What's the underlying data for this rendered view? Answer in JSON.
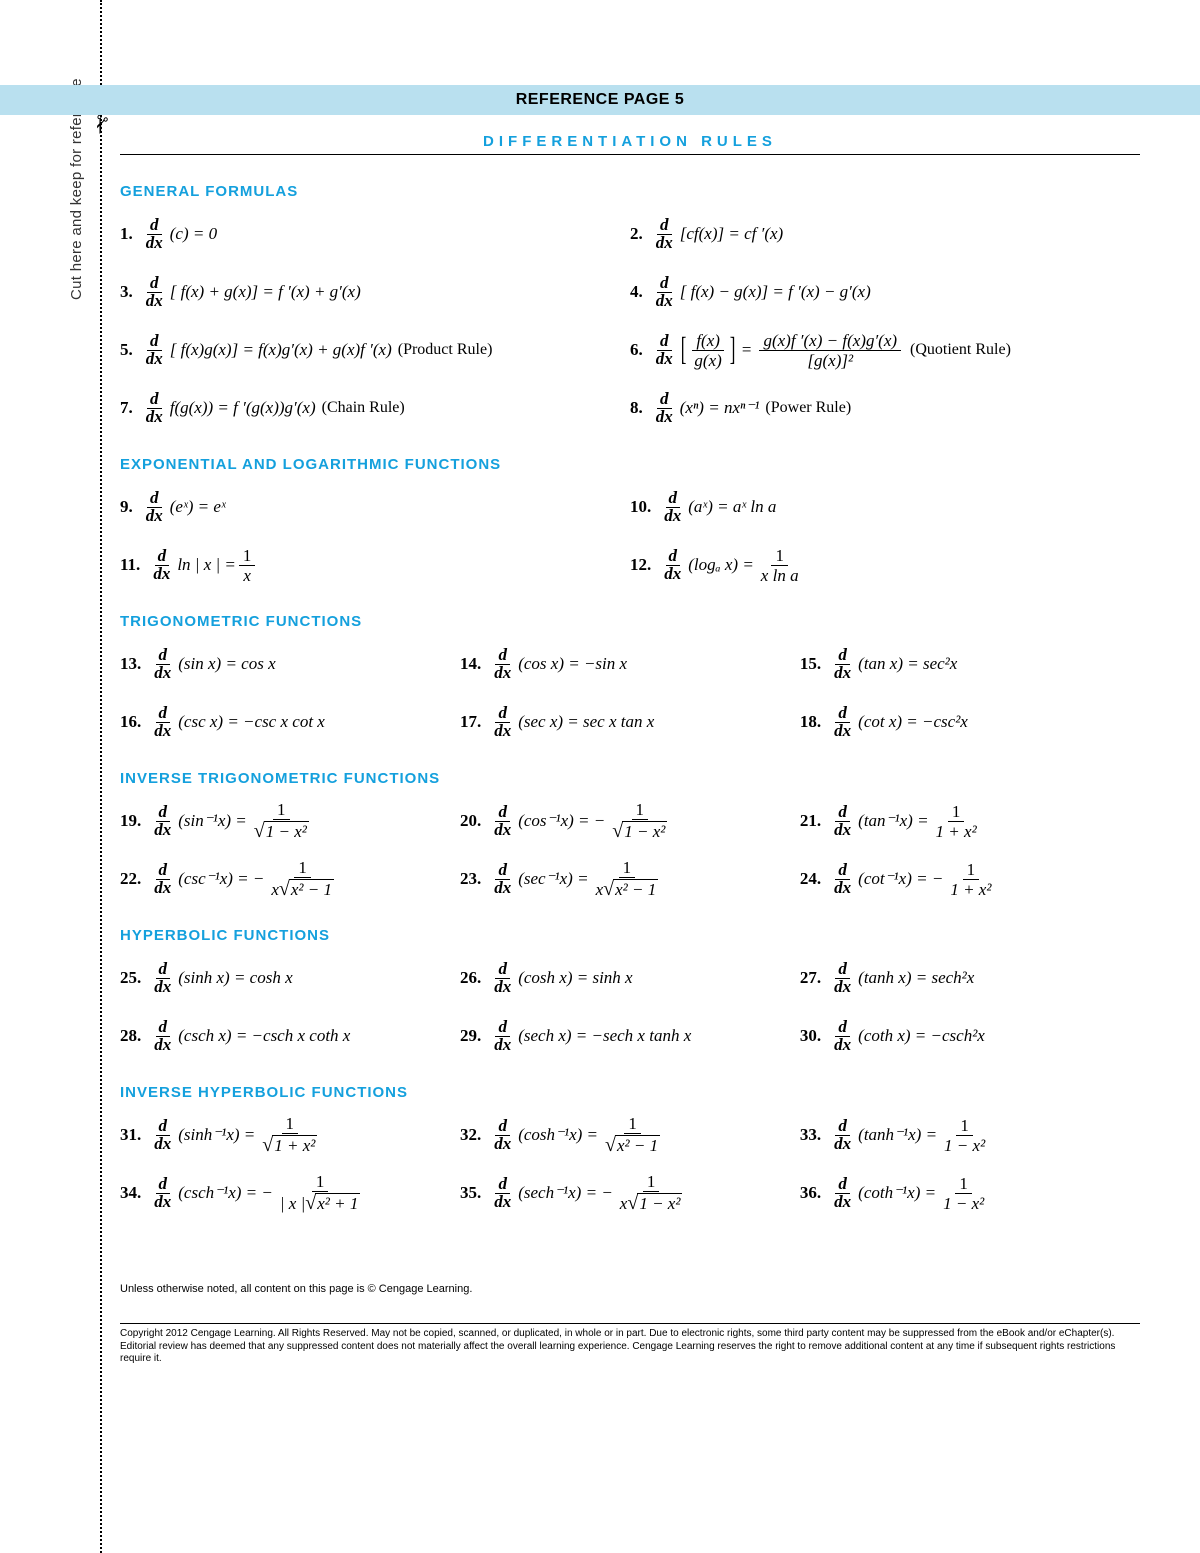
{
  "header": {
    "page_title": "REFERENCE PAGE 5",
    "subtitle": "DIFFERENTIATION RULES",
    "side_label": "Cut here and keep for reference",
    "scissors_glyph": "✁"
  },
  "colors": {
    "accent_blue": "#14a0dd",
    "header_bg": "#b9e0ef",
    "text": "#000000",
    "page_bg": "#ffffff"
  },
  "sections": {
    "general": {
      "title": "GENERAL FORMULAS",
      "items": {
        "r1_num": "1.",
        "r1_body": "(c) = 0",
        "r2_num": "2.",
        "r2_body": "[cf(x)] = cf ′(x)",
        "r3_num": "3.",
        "r3_body": "[ f(x) + g(x)] = f ′(x) + g′(x)",
        "r4_num": "4.",
        "r4_body": "[ f(x) − g(x)] = f ′(x) − g′(x)",
        "r5_num": "5.",
        "r5_body": "[ f(x)g(x)] = f(x)g′(x) + g(x)f ′(x)",
        "r5_label": "(Product Rule)",
        "r6_num": "6.",
        "r6_top": "f(x)",
        "r6_bot": "g(x)",
        "r6_rhs_top": "g(x)f ′(x) − f(x)g′(x)",
        "r6_rhs_bot": "[g(x)]²",
        "r6_label": "(Quotient Rule)",
        "r7_num": "7.",
        "r7_body": " f(g(x)) = f ′(g(x))g′(x)",
        "r7_label": "(Chain Rule)",
        "r8_num": "8.",
        "r8_body": "(xⁿ) = nxⁿ⁻¹",
        "r8_label": "(Power Rule)"
      }
    },
    "explog": {
      "title": "EXPONENTIAL AND LOGARITHMIC FUNCTIONS",
      "items": {
        "r9_num": "9.",
        "r9_body": "(eˣ) = eˣ",
        "r10_num": "10.",
        "r10_body": "(aˣ) = aˣ ln a",
        "r11_num": "11.",
        "r11_lhs": " ln | x | = ",
        "r11_top": "1",
        "r11_bot": "x",
        "r12_num": "12.",
        "r12_lhs": "(logₐ x) = ",
        "r12_top": "1",
        "r12_bot": "x ln a"
      }
    },
    "trig": {
      "title": "TRIGONOMETRIC FUNCTIONS",
      "items": {
        "r13_num": "13.",
        "r13": "(sin x) = cos x",
        "r14_num": "14.",
        "r14": "(cos x) = −sin x",
        "r15_num": "15.",
        "r15": "(tan x) = sec²x",
        "r16_num": "16.",
        "r16": "(csc x) = −csc x cot x",
        "r17_num": "17.",
        "r17": "(sec x) = sec x tan x",
        "r18_num": "18.",
        "r18": "(cot x) = −csc²x"
      }
    },
    "invtrig": {
      "title": "INVERSE TRIGONOMETRIC FUNCTIONS",
      "items": {
        "r19_num": "19.",
        "r19_lhs": "(sin⁻¹x) = ",
        "r19_top": "1",
        "r19_rad": "1 − x²",
        "r20_num": "20.",
        "r20_lhs": "(cos⁻¹x) = −",
        "r20_top": "1",
        "r20_rad": "1 − x²",
        "r21_num": "21.",
        "r21_lhs": "(tan⁻¹x) = ",
        "r21_top": "1",
        "r21_bot": "1 + x²",
        "r22_num": "22.",
        "r22_lhs": "(csc⁻¹x) = −",
        "r22_top": "1",
        "r22_pre": "x",
        "r22_rad": "x² − 1",
        "r23_num": "23.",
        "r23_lhs": "(sec⁻¹x) = ",
        "r23_top": "1",
        "r23_pre": "x",
        "r23_rad": "x² − 1",
        "r24_num": "24.",
        "r24_lhs": "(cot⁻¹x) = −",
        "r24_top": "1",
        "r24_bot": "1 + x²"
      }
    },
    "hyp": {
      "title": "HYPERBOLIC FUNCTIONS",
      "items": {
        "r25_num": "25.",
        "r25": "(sinh x) = cosh x",
        "r26_num": "26.",
        "r26": "(cosh x) = sinh x",
        "r27_num": "27.",
        "r27": "(tanh x) = sech²x",
        "r28_num": "28.",
        "r28": "(csch x) = −csch x coth x",
        "r29_num": "29.",
        "r29": "(sech x) = −sech x tanh x",
        "r30_num": "30.",
        "r30": "(coth x) = −csch²x"
      }
    },
    "invhyp": {
      "title": "INVERSE HYPERBOLIC FUNCTIONS",
      "items": {
        "r31_num": "31.",
        "r31_lhs": "(sinh⁻¹x) = ",
        "r31_top": "1",
        "r31_rad": "1 + x²",
        "r32_num": "32.",
        "r32_lhs": "(cosh⁻¹x) = ",
        "r32_top": "1",
        "r32_rad": "x² − 1",
        "r33_num": "33.",
        "r33_lhs": "(tanh⁻¹x) = ",
        "r33_top": "1",
        "r33_bot": "1 − x²",
        "r34_num": "34.",
        "r34_lhs": "(csch⁻¹x) = −",
        "r34_top": "1",
        "r34_pre": "| x |",
        "r34_rad": "x² + 1",
        "r35_num": "35.",
        "r35_lhs": "(sech⁻¹x) = −",
        "r35_top": "1",
        "r35_pre": "x",
        "r35_rad": "1 − x²",
        "r36_num": "36.",
        "r36_lhs": "(coth⁻¹x) = ",
        "r36_top": "1",
        "r36_bot": "1 − x²"
      }
    }
  },
  "footer": {
    "note": "Unless otherwise noted, all content on this page is © Cengage Learning.",
    "copyright": "Copyright 2012 Cengage Learning. All Rights Reserved. May not be copied, scanned, or duplicated, in whole or in part. Due to electronic rights, some third party content may be suppressed from the eBook and/or eChapter(s). Editorial review has deemed that any suppressed content does not materially affect the overall learning experience. Cengage Learning reserves the right to remove additional content at any time if subsequent rights restrictions require it."
  },
  "typography": {
    "body_font": "Times New Roman",
    "heading_font": "Arial",
    "section_head_fontsize": 15,
    "body_fontsize": 17,
    "subtitle_letterspacing": 5
  }
}
